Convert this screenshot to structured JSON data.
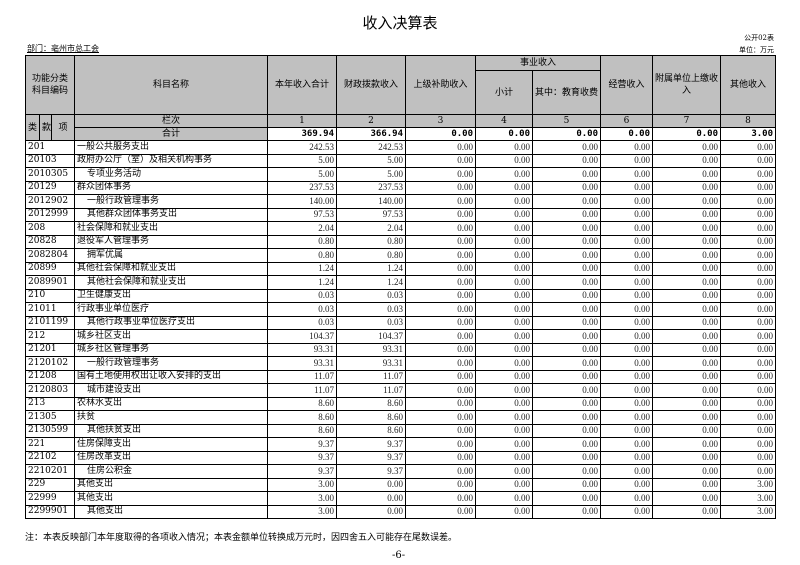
{
  "title": "收入决算表",
  "form_no": "公开02表",
  "department": "部门：亳州市总工会",
  "unit": "单位：万元",
  "headers": {
    "code_group": "功能分类科目编码",
    "name": "科目名称",
    "col1": "本年收入合计",
    "col2": "财政拨款收入",
    "col3": "上级补助收入",
    "shiye": "事业收入",
    "col4": "小计",
    "col5": "其中：教育收费",
    "col6": "经营收入",
    "col7": "附属单位上缴收入",
    "col8": "其他收入",
    "lei": "类",
    "kuan": "款",
    "xiang": "项",
    "lanci": "栏次",
    "numbers": [
      "1",
      "2",
      "3",
      "4",
      "5",
      "6",
      "7",
      "8"
    ],
    "total_label": "合计",
    "totals": [
      "369.94",
      "366.94",
      "0.00",
      "0.00",
      "0.00",
      "0.00",
      "0.00",
      "3.00"
    ]
  },
  "rows": [
    {
      "code": "201",
      "name": "一般公共服务支出",
      "indent": false,
      "v": [
        "242.53",
        "242.53",
        "0.00",
        "0.00",
        "0.00",
        "0.00",
        "0.00",
        "0.00"
      ]
    },
    {
      "code": "20103",
      "name": "政府办公厅（室）及相关机构事务",
      "indent": false,
      "v": [
        "5.00",
        "5.00",
        "0.00",
        "0.00",
        "0.00",
        "0.00",
        "0.00",
        "0.00"
      ]
    },
    {
      "code": "2010305",
      "name": "专项业务活动",
      "indent": true,
      "v": [
        "5.00",
        "5.00",
        "0.00",
        "0.00",
        "0.00",
        "0.00",
        "0.00",
        "0.00"
      ]
    },
    {
      "code": "20129",
      "name": "群众团体事务",
      "indent": false,
      "v": [
        "237.53",
        "237.53",
        "0.00",
        "0.00",
        "0.00",
        "0.00",
        "0.00",
        "0.00"
      ]
    },
    {
      "code": "2012902",
      "name": "一般行政管理事务",
      "indent": true,
      "v": [
        "140.00",
        "140.00",
        "0.00",
        "0.00",
        "0.00",
        "0.00",
        "0.00",
        "0.00"
      ]
    },
    {
      "code": "2012999",
      "name": "其他群众团体事务支出",
      "indent": true,
      "v": [
        "97.53",
        "97.53",
        "0.00",
        "0.00",
        "0.00",
        "0.00",
        "0.00",
        "0.00"
      ]
    },
    {
      "code": "208",
      "name": "社会保障和就业支出",
      "indent": false,
      "v": [
        "2.04",
        "2.04",
        "0.00",
        "0.00",
        "0.00",
        "0.00",
        "0.00",
        "0.00"
      ]
    },
    {
      "code": "20828",
      "name": "退役军人管理事务",
      "indent": false,
      "v": [
        "0.80",
        "0.80",
        "0.00",
        "0.00",
        "0.00",
        "0.00",
        "0.00",
        "0.00"
      ]
    },
    {
      "code": "2082804",
      "name": "拥军优属",
      "indent": true,
      "v": [
        "0.80",
        "0.80",
        "0.00",
        "0.00",
        "0.00",
        "0.00",
        "0.00",
        "0.00"
      ]
    },
    {
      "code": "20899",
      "name": "其他社会保障和就业支出",
      "indent": false,
      "v": [
        "1.24",
        "1.24",
        "0.00",
        "0.00",
        "0.00",
        "0.00",
        "0.00",
        "0.00"
      ]
    },
    {
      "code": "2089901",
      "name": "其他社会保障和就业支出",
      "indent": true,
      "v": [
        "1.24",
        "1.24",
        "0.00",
        "0.00",
        "0.00",
        "0.00",
        "0.00",
        "0.00"
      ]
    },
    {
      "code": "210",
      "name": "卫生健康支出",
      "indent": false,
      "v": [
        "0.03",
        "0.03",
        "0.00",
        "0.00",
        "0.00",
        "0.00",
        "0.00",
        "0.00"
      ]
    },
    {
      "code": "21011",
      "name": "行政事业单位医疗",
      "indent": false,
      "v": [
        "0.03",
        "0.03",
        "0.00",
        "0.00",
        "0.00",
        "0.00",
        "0.00",
        "0.00"
      ]
    },
    {
      "code": "2101199",
      "name": "其他行政事业单位医疗支出",
      "indent": true,
      "v": [
        "0.03",
        "0.03",
        "0.00",
        "0.00",
        "0.00",
        "0.00",
        "0.00",
        "0.00"
      ]
    },
    {
      "code": "212",
      "name": "城乡社区支出",
      "indent": false,
      "v": [
        "104.37",
        "104.37",
        "0.00",
        "0.00",
        "0.00",
        "0.00",
        "0.00",
        "0.00"
      ]
    },
    {
      "code": "21201",
      "name": "城乡社区管理事务",
      "indent": false,
      "v": [
        "93.31",
        "93.31",
        "0.00",
        "0.00",
        "0.00",
        "0.00",
        "0.00",
        "0.00"
      ]
    },
    {
      "code": "2120102",
      "name": "一般行政管理事务",
      "indent": true,
      "v": [
        "93.31",
        "93.31",
        "0.00",
        "0.00",
        "0.00",
        "0.00",
        "0.00",
        "0.00"
      ]
    },
    {
      "code": "21208",
      "name": "国有土地使用权出让收入安排的支出",
      "indent": false,
      "v": [
        "11.07",
        "11.07",
        "0.00",
        "0.00",
        "0.00",
        "0.00",
        "0.00",
        "0.00"
      ]
    },
    {
      "code": "2120803",
      "name": "城市建设支出",
      "indent": true,
      "v": [
        "11.07",
        "11.07",
        "0.00",
        "0.00",
        "0.00",
        "0.00",
        "0.00",
        "0.00"
      ]
    },
    {
      "code": "213",
      "name": "农林水支出",
      "indent": false,
      "v": [
        "8.60",
        "8.60",
        "0.00",
        "0.00",
        "0.00",
        "0.00",
        "0.00",
        "0.00"
      ]
    },
    {
      "code": "21305",
      "name": "扶贫",
      "indent": false,
      "v": [
        "8.60",
        "8.60",
        "0.00",
        "0.00",
        "0.00",
        "0.00",
        "0.00",
        "0.00"
      ]
    },
    {
      "code": "2130599",
      "name": "其他扶贫支出",
      "indent": true,
      "v": [
        "8.60",
        "8.60",
        "0.00",
        "0.00",
        "0.00",
        "0.00",
        "0.00",
        "0.00"
      ]
    },
    {
      "code": "221",
      "name": "住房保障支出",
      "indent": false,
      "v": [
        "9.37",
        "9.37",
        "0.00",
        "0.00",
        "0.00",
        "0.00",
        "0.00",
        "0.00"
      ]
    },
    {
      "code": "22102",
      "name": "住房改革支出",
      "indent": false,
      "v": [
        "9.37",
        "9.37",
        "0.00",
        "0.00",
        "0.00",
        "0.00",
        "0.00",
        "0.00"
      ]
    },
    {
      "code": "2210201",
      "name": "住房公积金",
      "indent": true,
      "v": [
        "9.37",
        "9.37",
        "0.00",
        "0.00",
        "0.00",
        "0.00",
        "0.00",
        "0.00"
      ]
    },
    {
      "code": "229",
      "name": "其他支出",
      "indent": false,
      "v": [
        "3.00",
        "0.00",
        "0.00",
        "0.00",
        "0.00",
        "0.00",
        "0.00",
        "3.00"
      ]
    },
    {
      "code": "22999",
      "name": "其他支出",
      "indent": false,
      "v": [
        "3.00",
        "0.00",
        "0.00",
        "0.00",
        "0.00",
        "0.00",
        "0.00",
        "3.00"
      ]
    },
    {
      "code": "2299901",
      "name": "其他支出",
      "indent": true,
      "v": [
        "3.00",
        "0.00",
        "0.00",
        "0.00",
        "0.00",
        "0.00",
        "0.00",
        "3.00"
      ]
    }
  ],
  "note": "注：本表反映部门本年度取得的各项收入情况；本表金额单位转换成万元时，因四舍五入可能存在尾数误差。",
  "page_number": "-6-"
}
